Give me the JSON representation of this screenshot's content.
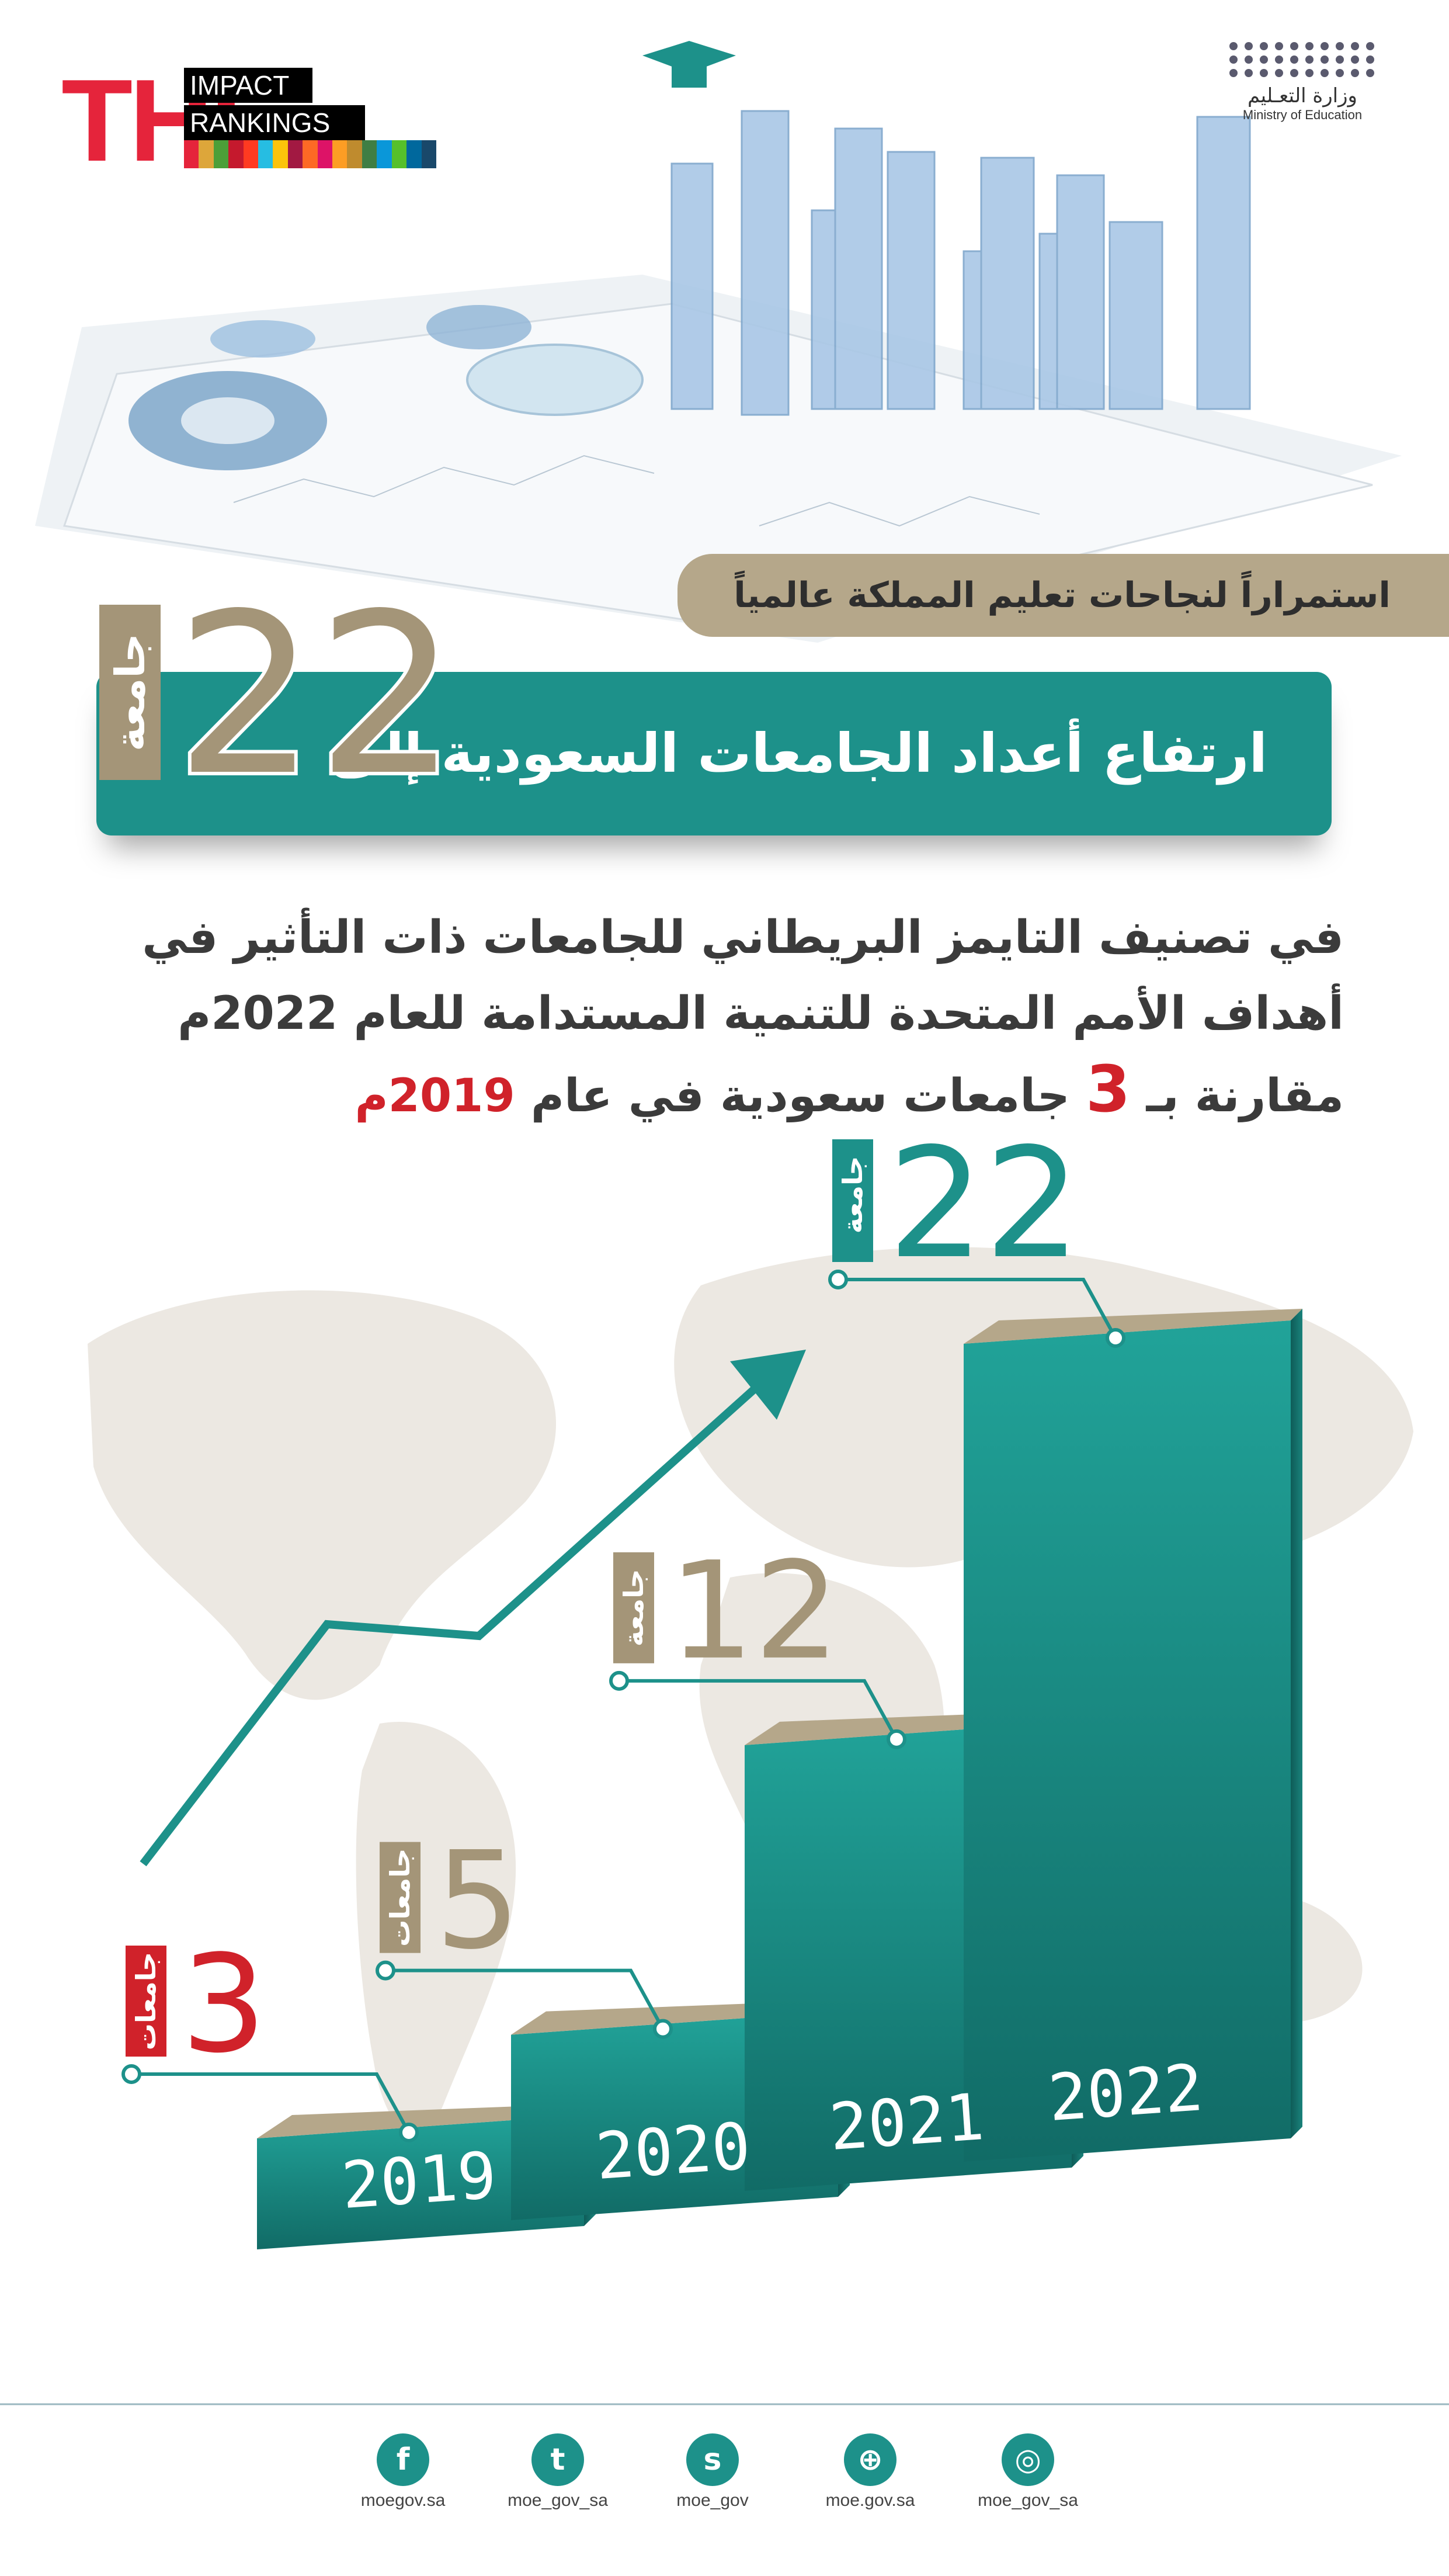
{
  "logo": {
    "the": "THE",
    "line1": "IMPACT",
    "line2": "RANKINGS",
    "sdg_colors": [
      "#e5243b",
      "#dda63a",
      "#4c9f38",
      "#c5192d",
      "#ff3a21",
      "#26bde2",
      "#fcc30b",
      "#a21942",
      "#fd6925",
      "#dd1367",
      "#fd9d24",
      "#bf8b2e",
      "#3f7e44",
      "#0a97d9",
      "#56c02b",
      "#00689d",
      "#19486a"
    ]
  },
  "ministry": {
    "name_ar": "وزارة التعـليم",
    "name_en": "Ministry of Education"
  },
  "subtitle": "استمراراً لنجاحات تعليم المملكة عالمياً",
  "headline": "ارتفاع أعداد الجامعات السعودية إلى",
  "hero": {
    "number": "22",
    "unit": "جامعة"
  },
  "description": {
    "line1": "في تصنيف التايمز البريطاني للجامعات ذات التأثير في",
    "line2": "أهداف الأمم المتحدة للتنمية المستدامة للعام 2022م",
    "line3_pre": "مقارنة بـ",
    "line3_num": "3",
    "line3_mid": "جامعات سعودية في عام",
    "line3_year": "2019م"
  },
  "chart_data": {
    "type": "bar",
    "categories": [
      "2019",
      "2020",
      "2021",
      "2022"
    ],
    "values": [
      3,
      5,
      12,
      22
    ],
    "value_labels": [
      "3",
      "5",
      "12",
      "22"
    ],
    "unit_labels": [
      "جامعات",
      "جامعات",
      "جامعة",
      "جامعة"
    ],
    "label_colors": [
      "#d0222a",
      "#a49578",
      "#a49578",
      "#1d918a"
    ],
    "bar_color": "#1d918a",
    "top_color": "#b5a78a",
    "trend_arrow": true
  },
  "colors": {
    "teal": "#1d918a",
    "gold": "#a49578",
    "red": "#d0222a"
  },
  "social": [
    {
      "icon": "facebook-icon",
      "glyph": "f",
      "label": "moegov.sa"
    },
    {
      "icon": "twitter-icon",
      "glyph": "t",
      "label": "moe_gov_sa"
    },
    {
      "icon": "snapchat-icon",
      "glyph": "s",
      "label": "moe_gov"
    },
    {
      "icon": "globe-icon",
      "glyph": "⊕",
      "label": "moe.gov.sa"
    },
    {
      "icon": "instagram-icon",
      "glyph": "◎",
      "label": "moe_gov_sa"
    }
  ]
}
